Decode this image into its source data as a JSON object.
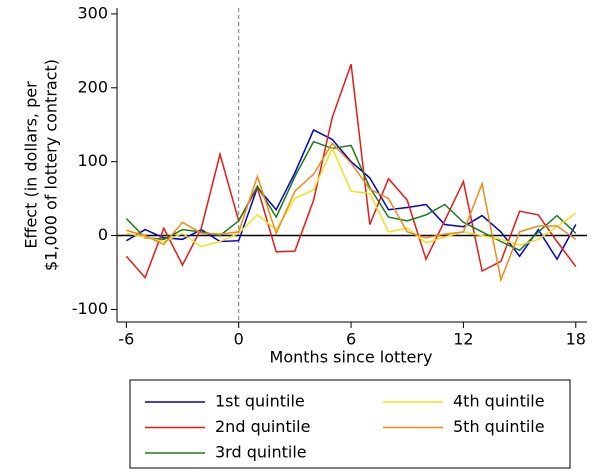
{
  "chart_data": {
    "type": "line",
    "xlabel": "Months since lottery",
    "ylabel": [
      "Effect (in dollars, per",
      "$1,000 of lottery contract)"
    ],
    "x": [
      -6,
      -5,
      -4,
      -3,
      -2,
      -1,
      0,
      1,
      2,
      3,
      4,
      5,
      6,
      7,
      8,
      9,
      10,
      11,
      12,
      13,
      14,
      15,
      16,
      17,
      18
    ],
    "series": [
      {
        "name": "1st quintile",
        "color": "#0000cc",
        "values": [
          -7,
          8,
          -3,
          -5,
          8,
          -8,
          -7,
          65,
          35,
          85,
          143,
          130,
          100,
          78,
          35,
          38,
          42,
          15,
          12,
          27,
          5,
          -28,
          8,
          -32,
          15
        ]
      },
      {
        "name": "2nd quintile",
        "color": "#e31a1c",
        "values": [
          -28,
          -57,
          10,
          -40,
          10,
          110,
          20,
          65,
          -22,
          -21,
          48,
          160,
          232,
          15,
          77,
          48,
          -32,
          20,
          73,
          -48,
          -35,
          33,
          28,
          -8,
          -42
        ]
      },
      {
        "name": "3rd quintile",
        "color": "#1b7a1b",
        "values": [
          23,
          -3,
          -5,
          8,
          5,
          0,
          20,
          67,
          25,
          80,
          127,
          118,
          122,
          65,
          25,
          20,
          28,
          42,
          18,
          5,
          -8,
          -20,
          5,
          27,
          3
        ]
      },
      {
        "name": "4th quintile",
        "color": "#f2e01a",
        "values": [
          3,
          -2,
          -8,
          3,
          -15,
          -8,
          3,
          28,
          8,
          50,
          62,
          118,
          60,
          57,
          5,
          10,
          -10,
          -2,
          5,
          0,
          -5,
          -13,
          -5,
          12,
          30
        ]
      },
      {
        "name": "5th quintile",
        "color": "#f08a1a",
        "values": [
          7,
          0,
          -12,
          18,
          3,
          2,
          5,
          80,
          3,
          60,
          83,
          125,
          98,
          63,
          50,
          5,
          -3,
          2,
          5,
          70,
          -60,
          5,
          13,
          13,
          -5
        ]
      }
    ],
    "xlim": [
      -6.5,
      18.6
    ],
    "ylim": [
      -117,
      308
    ],
    "xticks": [
      -6,
      0,
      6,
      12,
      18
    ],
    "yticks": [
      -100,
      0,
      100,
      200,
      300
    ],
    "vline": 0,
    "hline": 0
  }
}
